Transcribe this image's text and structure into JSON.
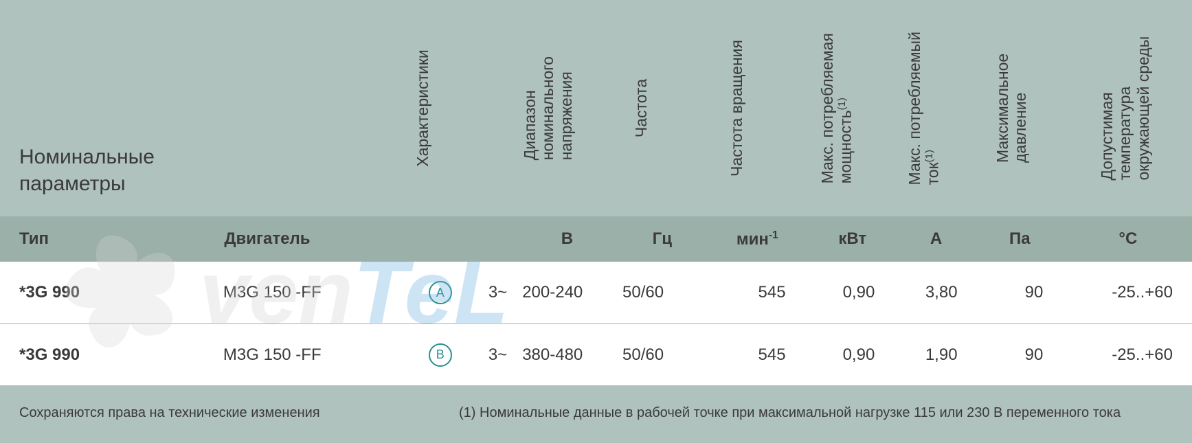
{
  "title_line1": "Номинальные",
  "title_line2": "параметры",
  "headers": {
    "type": "Тип",
    "motor": "Двигатель",
    "characteristics": "Характеристики",
    "voltage_range": "Диапазон\nноминального\nнапряжения",
    "frequency": "Частота",
    "speed": "Частота вращения",
    "max_power": "Макс. потребляемая\nмощность",
    "max_current": "Макс. потребляемый\nток",
    "max_pressure": "Максимальное\nдавление",
    "temp_range": "Допустимая\nтемпература\nокружающей среды"
  },
  "power_note_sup": "(1)",
  "current_note_sup": "(1)",
  "units": {
    "voltage": "В",
    "frequency": "Гц",
    "speed_pre": "мин",
    "speed_sup": "-1",
    "power": "кВт",
    "current": "А",
    "pressure": "Па",
    "temp": "°С"
  },
  "rows": [
    {
      "type": "*3G  990",
      "motor": "M3G 150 -FF",
      "badge": "A",
      "phase": "3~",
      "voltage": "200-240",
      "frequency": "50/60",
      "speed": "545",
      "power": "0,90",
      "current": "3,80",
      "pressure": "90",
      "temp": "-25..+60"
    },
    {
      "type": "*3G  990",
      "motor": "M3G 150 -FF",
      "badge": "B",
      "phase": "3~",
      "voltage": "380-480",
      "frequency": "50/60",
      "speed": "545",
      "power": "0,90",
      "current": "1,90",
      "pressure": "90",
      "temp": "-25..+60"
    }
  ],
  "footer_left": "Сохраняются права на технические изменения",
  "footer_right": "(1) Номинальные данные в рабочей точке при максимальной нагрузке 115 или 230 В переменного тока",
  "colors": {
    "bg_header": "#b0c2bd",
    "bg_unit_row": "#9cb0aa",
    "bg_data_row": "#ffffff",
    "text": "#3a3a3a",
    "badge": "#2a8f8f"
  },
  "watermark": {
    "text1": "ven",
    "text2": "T",
    "text3": "eL",
    "text1_color": "#cfcfcf",
    "text2_color": "#5da9dd",
    "text3_color": "#5da9dd",
    "fan_color": "#d7d7d7"
  }
}
